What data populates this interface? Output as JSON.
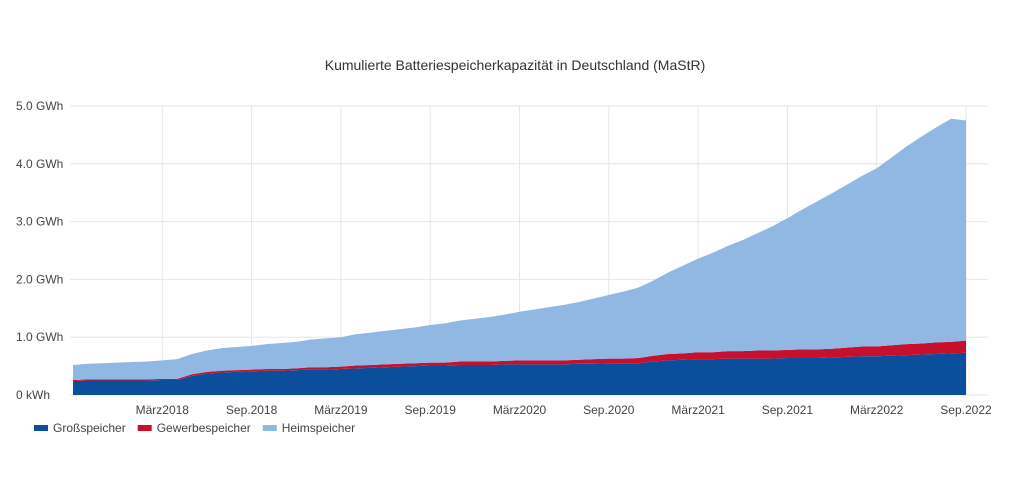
{
  "chart_data": {
    "type": "area",
    "stacked": true,
    "title": "Kumulierte Batteriespeicherkapazität in Deutschland (MaStR)",
    "xlabel": "",
    "ylabel": "",
    "ylim": [
      0,
      5
    ],
    "y_ticks": [
      {
        "value": 0,
        "label": "0 kWh"
      },
      {
        "value": 1,
        "label": "1.0 GWh"
      },
      {
        "value": 2,
        "label": "2.0 GWh"
      },
      {
        "value": 3,
        "label": "3.0 GWh"
      },
      {
        "value": 4,
        "label": "4.0 GWh"
      },
      {
        "value": 5,
        "label": "5.0 GWh"
      }
    ],
    "x_ticks": [
      "März2018",
      "Sep.2018",
      "März2019",
      "Sep.2019",
      "März2020",
      "Sep.2020",
      "März2021",
      "Sep.2021",
      "März2022",
      "Sep.2022"
    ],
    "x": [
      "Sep.2017",
      "Okt.2017",
      "Nov.2017",
      "Dez.2017",
      "Jan.2018",
      "Feb.2018",
      "März2018",
      "Apr.2018",
      "Mai.2018",
      "Jun.2018",
      "Jul.2018",
      "Aug.2018",
      "Sep.2018",
      "Okt.2018",
      "Nov.2018",
      "Dez.2018",
      "Jan.2019",
      "Feb.2019",
      "März2019",
      "Apr.2019",
      "Mai.2019",
      "Jun.2019",
      "Jul.2019",
      "Aug.2019",
      "Sep.2019",
      "Okt.2019",
      "Nov.2019",
      "Dez.2019",
      "Jan.2020",
      "Feb.2020",
      "März2020",
      "Apr.2020",
      "Mai.2020",
      "Jun.2020",
      "Jul.2020",
      "Aug.2020",
      "Sep.2020",
      "Okt.2020",
      "Nov.2020",
      "Dez.2020",
      "Jan.2021",
      "Feb.2021",
      "März2021",
      "Apr.2021",
      "Mai.2021",
      "Jun.2021",
      "Jul.2021",
      "Aug.2021",
      "Sep.2021",
      "Okt.2021",
      "Nov.2021",
      "Dez.2021",
      "Jan.2022",
      "Feb.2022",
      "März2022",
      "Apr.2022",
      "Mai.2022",
      "Jun.2022",
      "Jul.2022",
      "Aug.2022",
      "Sep.2022"
    ],
    "series": [
      {
        "name": "Großspeicher",
        "color": "#0b4f9c",
        "values": [
          0.24,
          0.25,
          0.25,
          0.25,
          0.25,
          0.25,
          0.26,
          0.26,
          0.33,
          0.37,
          0.39,
          0.4,
          0.41,
          0.42,
          0.42,
          0.43,
          0.44,
          0.44,
          0.45,
          0.46,
          0.47,
          0.48,
          0.49,
          0.5,
          0.51,
          0.51,
          0.52,
          0.52,
          0.52,
          0.53,
          0.53,
          0.53,
          0.53,
          0.53,
          0.54,
          0.54,
          0.55,
          0.55,
          0.55,
          0.58,
          0.6,
          0.61,
          0.62,
          0.62,
          0.63,
          0.63,
          0.63,
          0.63,
          0.64,
          0.64,
          0.64,
          0.65,
          0.66,
          0.67,
          0.67,
          0.68,
          0.69,
          0.7,
          0.71,
          0.72,
          0.73
        ]
      },
      {
        "name": "Gewerbespeicher",
        "color": "#c8102e",
        "values": [
          0.02,
          0.02,
          0.02,
          0.02,
          0.02,
          0.02,
          0.02,
          0.02,
          0.03,
          0.03,
          0.03,
          0.03,
          0.03,
          0.03,
          0.03,
          0.03,
          0.04,
          0.04,
          0.04,
          0.05,
          0.05,
          0.05,
          0.05,
          0.05,
          0.05,
          0.05,
          0.06,
          0.06,
          0.06,
          0.06,
          0.07,
          0.07,
          0.07,
          0.07,
          0.07,
          0.08,
          0.08,
          0.08,
          0.09,
          0.1,
          0.11,
          0.11,
          0.12,
          0.12,
          0.13,
          0.13,
          0.14,
          0.14,
          0.14,
          0.15,
          0.15,
          0.15,
          0.16,
          0.17,
          0.17,
          0.18,
          0.19,
          0.19,
          0.2,
          0.2,
          0.21
        ]
      },
      {
        "name": "Heimspeicher",
        "color": "#90b8e3",
        "values": [
          0.26,
          0.27,
          0.28,
          0.29,
          0.3,
          0.31,
          0.32,
          0.34,
          0.35,
          0.37,
          0.39,
          0.4,
          0.41,
          0.43,
          0.45,
          0.46,
          0.48,
          0.5,
          0.51,
          0.54,
          0.56,
          0.58,
          0.6,
          0.62,
          0.65,
          0.68,
          0.71,
          0.74,
          0.77,
          0.8,
          0.84,
          0.88,
          0.92,
          0.96,
          1.0,
          1.05,
          1.1,
          1.16,
          1.22,
          1.3,
          1.41,
          1.52,
          1.62,
          1.72,
          1.82,
          1.92,
          2.03,
          2.15,
          2.28,
          2.42,
          2.56,
          2.69,
          2.82,
          2.95,
          3.08,
          3.25,
          3.42,
          3.58,
          3.72,
          3.86,
          3.81
        ]
      }
    ],
    "legend": {
      "position": "bottom-left"
    },
    "grid": true
  }
}
